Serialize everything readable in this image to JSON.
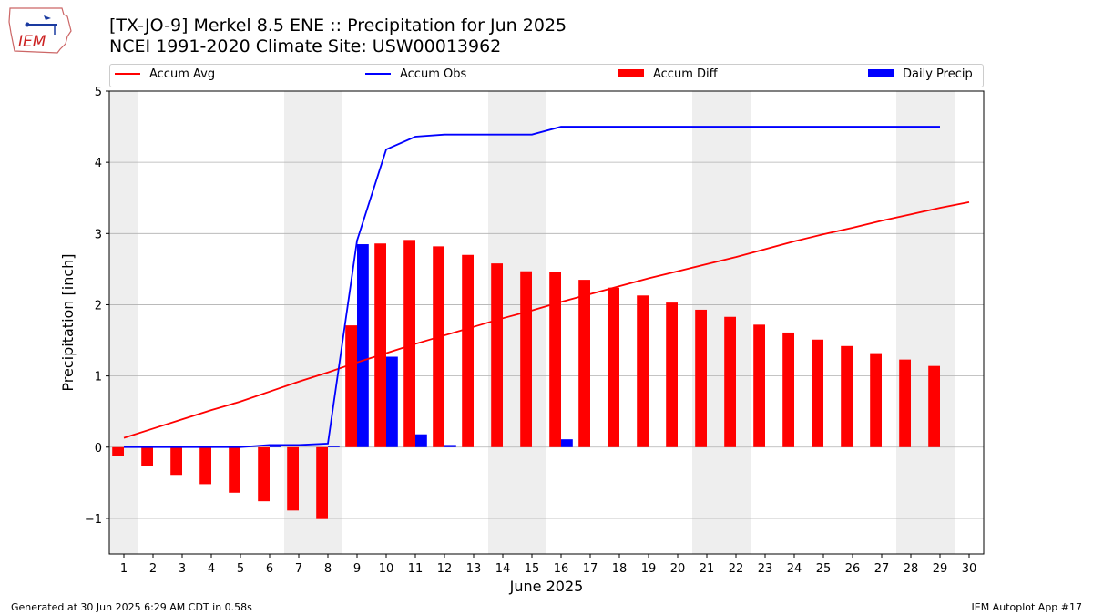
{
  "header": {
    "title_line1": "[TX-JO-9] Merkel 8.5 ENE :: Precipitation for Jun 2025",
    "title_line2": "NCEI 1991-2020 Climate Site: USW00013962",
    "logo_text": "IEM"
  },
  "legend": {
    "accum_avg": "Accum Avg",
    "accum_obs": "Accum Obs",
    "accum_diff": "Accum Diff",
    "daily_precip": "Daily Precip"
  },
  "footer": {
    "left": "Generated at 30 Jun 2025 6:29 AM CDT in 0.58s",
    "right": "IEM Autoplot App #17"
  },
  "colors": {
    "accum_avg": "#ff0000",
    "accum_obs": "#0000ff",
    "accum_diff": "#ff0000",
    "daily_precip": "#0000ff",
    "weekend_shade": "#eeeeee",
    "grid": "#b0b0b0"
  },
  "chart_data": {
    "type": "bar",
    "xlabel": "June 2025",
    "ylabel": "Precipitation [inch]",
    "xlim": [
      0.5,
      30.5
    ],
    "ylim": [
      -1.5,
      5
    ],
    "yticks": [
      -1,
      0,
      1,
      2,
      3,
      4,
      5
    ],
    "ytick_labels": [
      "−1",
      "0",
      "1",
      "2",
      "3",
      "4",
      "5"
    ],
    "grid": "horizontal",
    "legend_position": "top",
    "days": [
      1,
      2,
      3,
      4,
      5,
      6,
      7,
      8,
      9,
      10,
      11,
      12,
      13,
      14,
      15,
      16,
      17,
      18,
      19,
      20,
      21,
      22,
      23,
      24,
      25,
      26,
      27,
      28,
      29,
      30
    ],
    "weekend_days": [
      1,
      7,
      8,
      14,
      15,
      21,
      22,
      28,
      29
    ],
    "series": [
      {
        "name": "Accum Avg",
        "kind": "line",
        "x": [
          1,
          2,
          3,
          4,
          5,
          6,
          7,
          8,
          9,
          10,
          11,
          12,
          13,
          14,
          15,
          16,
          17,
          18,
          19,
          20,
          21,
          22,
          23,
          24,
          25,
          26,
          27,
          28,
          29,
          30
        ],
        "values": [
          0.13,
          0.26,
          0.39,
          0.52,
          0.64,
          0.78,
          0.92,
          1.05,
          1.19,
          1.32,
          1.45,
          1.57,
          1.69,
          1.81,
          1.92,
          2.04,
          2.15,
          2.26,
          2.37,
          2.47,
          2.57,
          2.67,
          2.78,
          2.89,
          2.99,
          3.08,
          3.18,
          3.27,
          3.36,
          3.44
        ]
      },
      {
        "name": "Accum Obs",
        "kind": "line",
        "x": [
          1,
          2,
          3,
          4,
          5,
          6,
          7,
          8,
          9,
          10,
          11,
          12,
          13,
          14,
          15,
          16,
          17,
          18,
          19,
          20,
          21,
          22,
          23,
          24,
          25,
          26,
          27,
          28,
          29
        ],
        "values": [
          0,
          0,
          0,
          0,
          0,
          0.03,
          0.03,
          0.05,
          2.9,
          4.18,
          4.36,
          4.39,
          4.39,
          4.39,
          4.39,
          4.5,
          4.5,
          4.5,
          4.5,
          4.5,
          4.5,
          4.5,
          4.5,
          4.5,
          4.5,
          4.5,
          4.5,
          4.5,
          4.5
        ]
      },
      {
        "name": "Accum Diff",
        "kind": "bar",
        "x": [
          1,
          2,
          3,
          4,
          5,
          6,
          7,
          8,
          9,
          10,
          11,
          12,
          13,
          14,
          15,
          16,
          17,
          18,
          19,
          20,
          21,
          22,
          23,
          24,
          25,
          26,
          27,
          28,
          29
        ],
        "values": [
          -0.13,
          -0.26,
          -0.39,
          -0.52,
          -0.64,
          -0.76,
          -0.89,
          -1.01,
          1.71,
          2.86,
          2.91,
          2.82,
          2.7,
          2.58,
          2.47,
          2.46,
          2.35,
          2.24,
          2.13,
          2.03,
          1.93,
          1.83,
          1.72,
          1.61,
          1.51,
          1.42,
          1.32,
          1.23,
          1.14
        ]
      },
      {
        "name": "Daily Precip",
        "kind": "bar",
        "x": [
          1,
          2,
          3,
          4,
          5,
          6,
          7,
          8,
          9,
          10,
          11,
          12,
          13,
          14,
          15,
          16,
          17,
          18,
          19,
          20,
          21,
          22,
          23,
          24,
          25,
          26,
          27,
          28,
          29
        ],
        "values": [
          0,
          0,
          0,
          0,
          0,
          0.03,
          0,
          0.02,
          2.85,
          1.27,
          0.18,
          0.03,
          0,
          0,
          0,
          0.11,
          0,
          0,
          0,
          0,
          0,
          0,
          0,
          0,
          0,
          0,
          0,
          0,
          0
        ]
      }
    ]
  }
}
